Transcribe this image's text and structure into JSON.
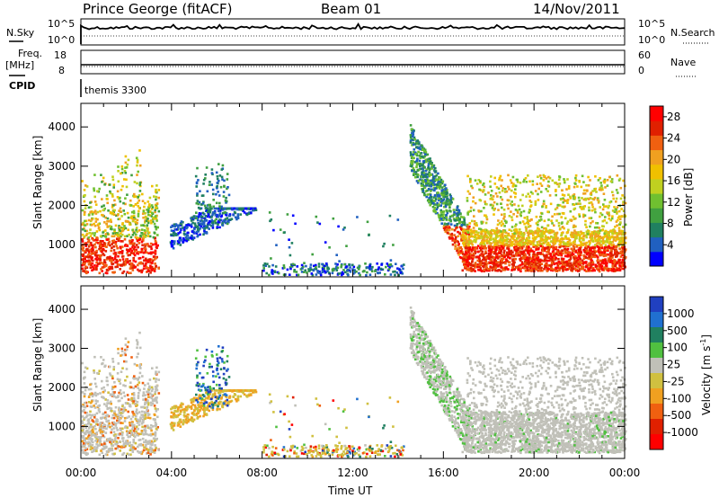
{
  "header": {
    "title": "Prince George (fitACF)",
    "beam": "Beam 01",
    "date": "14/Nov/2011"
  },
  "top_panels": {
    "nsky_label": "N.Sky",
    "nsky_ticks": [
      "10^5",
      "10^0"
    ],
    "nsearch_label": "N.Search",
    "nsearch_ticks": [
      "10^5",
      "10^0"
    ],
    "freq_label": "Freq.",
    "freq_unit": "[MHz]",
    "freq_ticks": [
      "18",
      "8"
    ],
    "nave_label": "Nave",
    "nave_ticks": [
      "60",
      "0"
    ],
    "cpid_label": "CPID",
    "cpid_value": "themis 3300"
  },
  "chart_data": [
    {
      "type": "heatmap",
      "name": "power",
      "xlabel": "",
      "ylabel": "Slant Range [km]",
      "xlim": [
        0,
        24
      ],
      "ylim": [
        180,
        4600
      ],
      "y_ticks": [
        "1000",
        "2000",
        "3000",
        "4000"
      ],
      "colorbar": {
        "label": "Power [dB]",
        "ticks": [
          "4",
          "8",
          "12",
          "16",
          "20",
          "24",
          "28"
        ],
        "colors": [
          "#0000ff",
          "#2060c0",
          "#208060",
          "#40a040",
          "#70c030",
          "#c0d020",
          "#f0c000",
          "#f0a020",
          "#f06010",
          "#e02000",
          "#ff0000"
        ],
        "range": [
          0,
          30
        ]
      }
    },
    {
      "type": "heatmap",
      "name": "velocity",
      "xlabel": "Time UT",
      "ylabel": "Slant Range [km]",
      "xlim": [
        0,
        24
      ],
      "ylim": [
        180,
        4600
      ],
      "x_ticks": [
        "00:00",
        "04:00",
        "08:00",
        "12:00",
        "16:00",
        "20:00",
        "00:00"
      ],
      "y_ticks": [
        "1000",
        "2000",
        "3000",
        "4000"
      ],
      "colorbar": {
        "label": "Velocity [m s",
        "label_sup": "-1",
        "label_tail": "]",
        "ticks": [
          "1000",
          "500",
          "100",
          "25",
          "-25",
          "-100",
          "-500",
          "-1000"
        ],
        "colors": [
          "#2040c0",
          "#2070d0",
          "#208060",
          "#50c040",
          "#c0c0b8",
          "#d0c040",
          "#f0a020",
          "#f06010",
          "#e02000",
          "#ff0000"
        ]
      }
    }
  ]
}
